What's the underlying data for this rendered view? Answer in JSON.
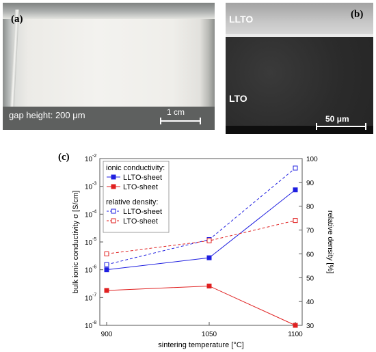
{
  "panels": {
    "a": {
      "label": "(a)",
      "caption": "gap height: 200 μm",
      "scale_bar": "1 cm"
    },
    "b": {
      "label": "(b)",
      "layer_top": "LLTO",
      "layer_bottom": "LTO",
      "scale_bar": "50 μm"
    },
    "c": {
      "label": "(c)"
    }
  },
  "chart_data": {
    "type": "line",
    "title": "",
    "xlabel": "sintering temperature [°C]",
    "ylabel_left": "bulk ionic conductivity σ [S/cm]",
    "ylabel_right": "relative density [%]",
    "x_categories": [
      "900",
      "1050",
      "1100"
    ],
    "y_left_scale": "log",
    "y_left_range": [
      1e-08,
      0.01
    ],
    "y_left_ticks": [
      "10",
      "10",
      "10",
      "10",
      "10",
      "10",
      "10"
    ],
    "y_left_tick_exponents": [
      "-8",
      "-7",
      "-6",
      "-5",
      "-4",
      "-3",
      "-2"
    ],
    "y_right_range": [
      30,
      100
    ],
    "y_right_ticks": [
      "30",
      "40",
      "50",
      "60",
      "70",
      "80",
      "90",
      "100"
    ],
    "legend": {
      "placement": "top-left",
      "group1_title": "ionic conductivity:",
      "group2_title": "relative density:"
    },
    "colors": {
      "llto": "#1f1fe0",
      "lto": "#e02020"
    },
    "series": [
      {
        "name": "LLTO-sheet",
        "group": "conductivity",
        "axis": "left",
        "style": "solid-filled",
        "color": "#1f1fe0",
        "values": [
          1e-06,
          2.7e-06,
          0.00075
        ]
      },
      {
        "name": "LTO-sheet",
        "group": "conductivity",
        "axis": "left",
        "style": "solid-filled",
        "color": "#e02020",
        "values": [
          1.8e-07,
          2.6e-07,
          1e-08
        ]
      },
      {
        "name": "LLTO-sheet",
        "group": "density",
        "axis": "right",
        "style": "dashed-open",
        "color": "#1f1fe0",
        "values": [
          55.5,
          66.0,
          96.0
        ]
      },
      {
        "name": "LTO-sheet",
        "group": "density",
        "axis": "right",
        "style": "dashed-open",
        "color": "#e02020",
        "values": [
          60.0,
          65.5,
          74.0
        ]
      }
    ]
  }
}
